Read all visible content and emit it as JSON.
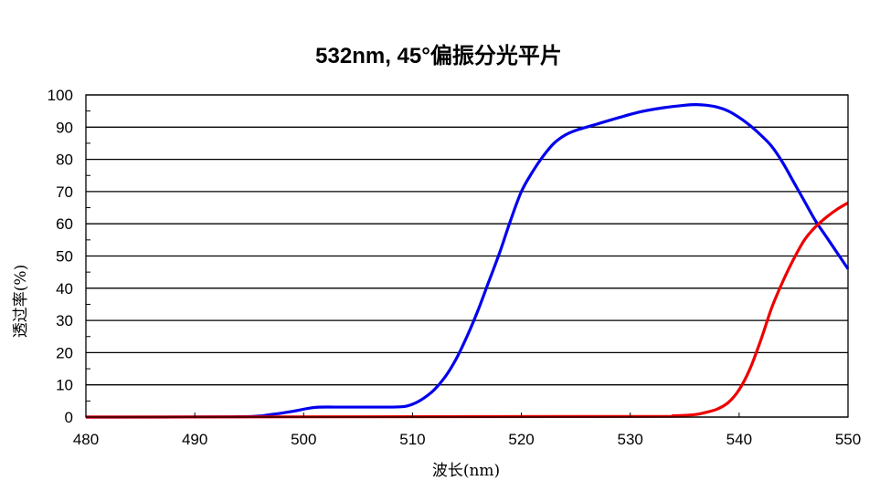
{
  "chart_data": {
    "type": "line",
    "title": "532nm, 45°偏振分光平片",
    "xlabel": "波长(nm)",
    "ylabel": "透过率(%)",
    "xlim": [
      480,
      550
    ],
    "ylim": [
      0,
      100
    ],
    "x_ticks": [
      "480",
      "490",
      "500",
      "510",
      "520",
      "530",
      "540",
      "550"
    ],
    "y_ticks": [
      "0",
      "10",
      "20",
      "30",
      "40",
      "50",
      "60",
      "70",
      "80",
      "90",
      "100"
    ],
    "grid": "horizontal",
    "legend": "none",
    "series": [
      {
        "color": "#0000ee",
        "x": [
          480,
          494,
          497,
          499,
          501,
          503,
          505,
          507,
          509,
          510,
          511,
          512,
          513,
          514,
          515,
          516,
          517,
          518,
          519,
          520,
          521,
          522,
          523,
          524,
          525,
          527,
          529,
          531,
          533,
          535,
          536,
          537,
          538,
          539,
          540,
          541,
          542,
          543,
          544,
          545,
          546,
          547,
          548,
          549,
          550
        ],
        "y": [
          0,
          0.1,
          0.8,
          1.8,
          3.0,
          3.1,
          3.1,
          3.1,
          3.2,
          4.0,
          5.8,
          8.5,
          12.5,
          18,
          25,
          33,
          42,
          51,
          61,
          70,
          76,
          81,
          85,
          87.5,
          89,
          91,
          93,
          94.8,
          96,
          96.8,
          97,
          96.8,
          96.2,
          95,
          93,
          90.5,
          87.5,
          84,
          79,
          73,
          67,
          61,
          56,
          51,
          46
        ]
      },
      {
        "color": "#ee0000",
        "x": [
          480,
          530,
          534,
          536,
          537,
          538,
          539,
          540,
          541,
          542,
          543,
          544,
          545,
          546,
          547,
          548,
          549,
          550
        ],
        "y": [
          0,
          0.2,
          0.4,
          0.8,
          1.5,
          2.5,
          4.5,
          8.5,
          15,
          24,
          34,
          42,
          49,
          55,
          59,
          62,
          64.5,
          66.5
        ]
      }
    ]
  }
}
